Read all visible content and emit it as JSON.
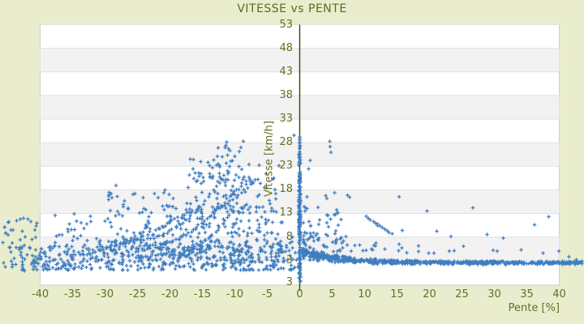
{
  "chart_data": {
    "type": "scatter",
    "title": "VITESSE vs PENTE",
    "xlabel": "Pente [%]",
    "ylabel": "Vitesse [km/h]",
    "legend": "none",
    "grid": "horizontal-alternating-bands",
    "marker": "plus",
    "xlim": [
      -40,
      40
    ],
    "ylim": [
      -2.2,
      53
    ],
    "x_ticks": [
      -40,
      -35,
      -30,
      -25,
      -20,
      -15,
      -10,
      -5,
      0,
      5,
      10,
      15,
      20,
      25,
      30,
      35,
      40
    ],
    "y_ticks": [
      53,
      48,
      43,
      38,
      33,
      28,
      23,
      18,
      13,
      8,
      3
    ],
    "y_edge_tick_label": "3",
    "axis_at_x": 0,
    "colors": {
      "page_background": "#e9edce",
      "plot_background": "#ffffff",
      "band_alt": "#f2f2f2",
      "grid_line": "#e2e2e2",
      "plot_border": "#cfcfcf",
      "axis_line": "#454f15",
      "text": "#666f21",
      "title_text": "#5e6a1d",
      "point": "#3e7dc0"
    },
    "distribution": {
      "comment": "parameters describing the ~2000 plotted points (speed km/h vs slope %), estimated from pixels",
      "clusters": [
        {
          "name": "left-low-cloud",
          "type": "box",
          "count": 430,
          "x": [
            -43,
            -0.5
          ],
          "y": [
            1.0,
            6.0
          ],
          "ypow": 1.4
        },
        {
          "name": "left-low-core",
          "type": "box",
          "count": 120,
          "x": [
            -30,
            -2
          ],
          "y": [
            2.0,
            7.5
          ]
        },
        {
          "name": "left-mid-far",
          "type": "box",
          "count": 85,
          "x": [
            -38,
            -18
          ],
          "y": [
            5,
            13
          ]
        },
        {
          "name": "left-mid-near",
          "type": "box",
          "count": 150,
          "x": [
            -21,
            -1
          ],
          "y": [
            5,
            14.5
          ]
        },
        {
          "name": "left-upper-far",
          "type": "box",
          "count": 40,
          "x": [
            -30,
            -15
          ],
          "y": [
            13,
            19
          ]
        },
        {
          "name": "left-upper-near",
          "type": "box",
          "count": 70,
          "x": [
            -16,
            -3.5
          ],
          "y": [
            13,
            21.5
          ]
        },
        {
          "name": "left-high",
          "type": "box",
          "count": 40,
          "x": [
            -17,
            -6
          ],
          "y": [
            19.5,
            24.5
          ]
        },
        {
          "name": "left-peak",
          "type": "box",
          "count": 9,
          "x": [
            -13,
            -8
          ],
          "y": [
            24.5,
            28.5
          ]
        },
        {
          "name": "left-outside-margin",
          "type": "box",
          "count": 48,
          "x": [
            -46.2,
            -40
          ],
          "y": [
            0.8,
            12
          ],
          "ypow": 1.3
        },
        {
          "name": "arc-big",
          "type": "curve",
          "count": 42,
          "x": [
            -26,
            -8.6
          ],
          "y": [
            7.2,
            28.3
          ],
          "k": 2.2,
          "jx": 0.4,
          "jy": 0.45
        },
        {
          "name": "arc-2",
          "type": "curve",
          "count": 30,
          "x": [
            -22.5,
            -9.8
          ],
          "y": [
            6.3,
            18.2
          ],
          "k": 1.8,
          "jx": 0.4,
          "jy": 0.4
        },
        {
          "name": "arc-3",
          "type": "curve",
          "count": 26,
          "x": [
            -30.5,
            -17
          ],
          "y": [
            5.8,
            13.8
          ],
          "k": 1.6,
          "jx": 0.4,
          "jy": 0.4
        },
        {
          "name": "arc-4",
          "type": "curve",
          "count": 22,
          "x": [
            -18.3,
            -10.4
          ],
          "y": [
            4.8,
            13.4
          ],
          "k": 1.7,
          "jx": 0.35,
          "jy": 0.35
        },
        {
          "name": "arc-5",
          "type": "curve",
          "count": 18,
          "x": [
            -34.5,
            -24
          ],
          "y": [
            4.2,
            9.0
          ],
          "k": 1.5,
          "jx": 0.4,
          "jy": 0.4
        },
        {
          "name": "arc-6",
          "type": "curve",
          "count": 16,
          "x": [
            -13.2,
            -6.8
          ],
          "y": [
            13.8,
            20.2
          ],
          "k": 1.4,
          "jx": 0.3,
          "jy": 0.35
        },
        {
          "name": "arc-right-descending",
          "type": "curve",
          "count": 12,
          "x": [
            10.2,
            14.2
          ],
          "y": [
            12.3,
            8.7
          ],
          "k": 1.0,
          "jx": 0.2,
          "jy": 0.25
        },
        {
          "name": "zero-column-main",
          "type": "column",
          "count": 135,
          "x": 0,
          "jitter": 0.16,
          "y": [
            1.2,
            18
          ]
        },
        {
          "name": "zero-column-upper",
          "type": "column",
          "count": 40,
          "x": 0,
          "jitter": 0.13,
          "y": [
            18,
            26.5
          ]
        },
        {
          "name": "zero-column-top",
          "type": "column",
          "count": 10,
          "x": 0,
          "jitter": 0.1,
          "y": [
            26.5,
            29.2
          ]
        },
        {
          "name": "zero-column-low",
          "type": "column",
          "count": 14,
          "x": 0,
          "jitter": 0.14,
          "y": [
            -1.5,
            1.2
          ]
        },
        {
          "name": "right-decay-band",
          "type": "decay",
          "count": 680,
          "x": [
            0.4,
            43.5
          ],
          "xpow": 1.3,
          "yinf": 2.55,
          "amp": 2.1,
          "tau": 6,
          "s0": 0.75,
          "stau": 9,
          "s1": 0.3
        },
        {
          "name": "right-scatter-low",
          "type": "box",
          "count": 55,
          "x": [
            0.5,
            8
          ],
          "y": [
            4.8,
            9
          ],
          "xpow": 1.6
        },
        {
          "name": "right-scatter-mid",
          "type": "box",
          "count": 22,
          "x": [
            0.5,
            6.5
          ],
          "y": [
            9,
            14.5
          ],
          "xpow": 1.6
        },
        {
          "name": "right-stragglers",
          "type": "box",
          "count": 14,
          "x": [
            8,
            20
          ],
          "y": [
            4.5,
            7
          ],
          "xpow": 1.3
        },
        {
          "name": "right-far-stragglers",
          "type": "box",
          "count": 12,
          "x": [
            10,
            40
          ],
          "y": [
            4.5,
            6.2
          ]
        }
      ],
      "outlier_points": [
        [
          4.6,
          28.3
        ],
        [
          4.7,
          27.2
        ],
        [
          4.8,
          26.0
        ],
        [
          1.6,
          24.2
        ],
        [
          1.4,
          22.4
        ],
        [
          -0.9,
          29.6
        ],
        [
          -3.2,
          23.1
        ],
        [
          1.1,
          16.5
        ],
        [
          4.0,
          16.8
        ],
        [
          4.2,
          16.2
        ],
        [
          5.4,
          17.4
        ],
        [
          7.4,
          16.9
        ],
        [
          7.7,
          16.4
        ],
        [
          15.3,
          16.5
        ],
        [
          2.8,
          14.3
        ],
        [
          5.8,
          13.1
        ],
        [
          15.8,
          9.4
        ],
        [
          26.7,
          14.2
        ],
        [
          38.4,
          12.3
        ],
        [
          36.2,
          10.6
        ],
        [
          19.6,
          13.5
        ],
        [
          23.3,
          8.1
        ],
        [
          31.4,
          7.8
        ],
        [
          12.0,
          10.4
        ],
        [
          21.1,
          9.2
        ],
        [
          28.9,
          8.5
        ],
        [
          41.5,
          3.8
        ],
        [
          42.6,
          3.2
        ],
        [
          43.5,
          2.9
        ],
        [
          -44.5,
          9.5
        ],
        [
          -41.9,
          11.8
        ]
      ],
      "random_seed": 7
    }
  }
}
